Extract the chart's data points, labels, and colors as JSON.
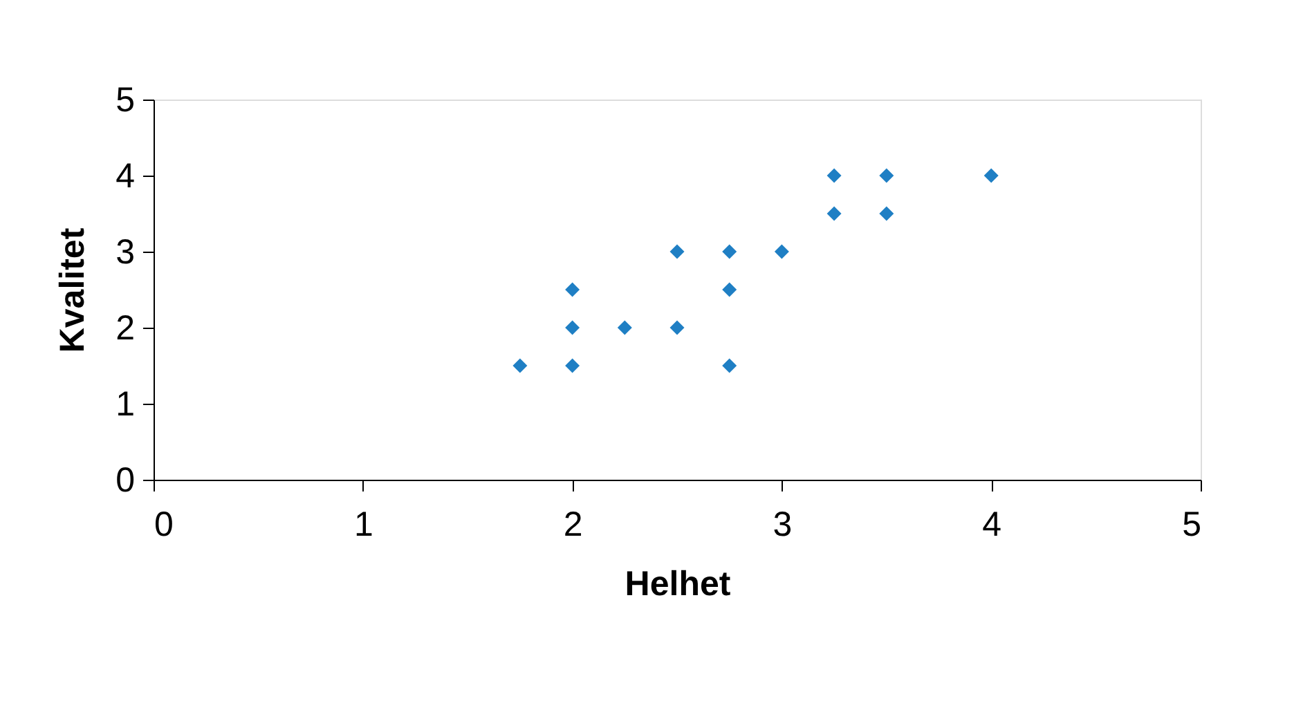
{
  "chart_data": {
    "type": "scatter",
    "xlabel": "Helhet",
    "ylabel": "Kvalitet",
    "x": [
      1.75,
      2,
      2,
      2,
      2.25,
      2.5,
      2.5,
      2.75,
      2.75,
      2.75,
      3,
      3.25,
      3.25,
      3.5,
      3.5,
      4
    ],
    "values": [
      1.5,
      2.5,
      2,
      1.5,
      2,
      3,
      2,
      3,
      2.5,
      1.5,
      3,
      4,
      3.5,
      4,
      3.5,
      4
    ],
    "color": "#1f7fc4",
    "marker": "diamond",
    "xlim": [
      0,
      5
    ],
    "ylim": [
      0,
      5
    ],
    "xticks": [
      0,
      1,
      2,
      3,
      4,
      5
    ],
    "yticks": [
      0,
      1,
      2,
      3,
      4,
      5
    ]
  }
}
